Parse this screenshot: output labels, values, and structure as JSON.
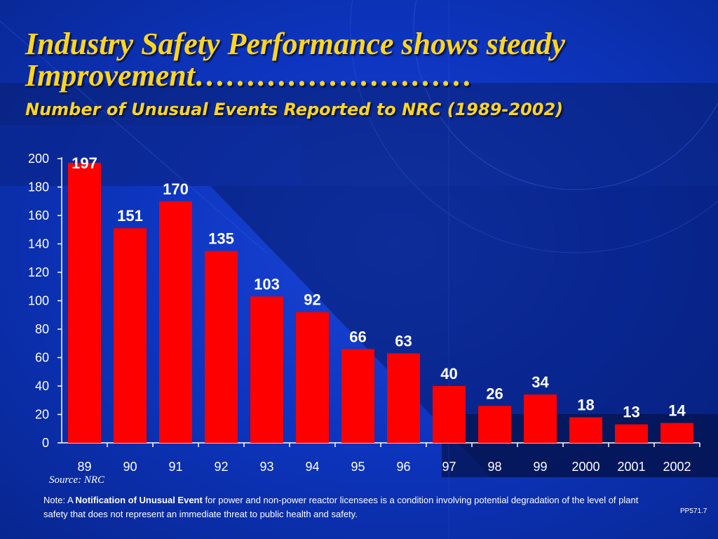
{
  "slide": {
    "title_line1": "Industry Safety Performance shows steady",
    "title_line2": "Improvement………………………",
    "subtitle": "Number of Unusual Events Reported to NRC (1989-2002)",
    "source": "Source: NRC",
    "note_prefix": "Note: A ",
    "note_bold": "Notification of Unusual Event",
    "note_rest": " for power and non-power reactor licensees is a condition involving potential degradation of the level of plant safety that does not represent an immediate threat to public health and safety.",
    "code": "PP571.7"
  },
  "colors": {
    "bar": "#ff0000",
    "title": "#ffd51f",
    "background": "#0d35c0",
    "text": "#ffffff"
  },
  "chart_data": {
    "type": "bar",
    "title": "Number of Unusual Events Reported to NRC (1989-2002)",
    "xlabel": "",
    "ylabel": "",
    "categories": [
      "89",
      "90",
      "91",
      "92",
      "93",
      "94",
      "95",
      "96",
      "97",
      "98",
      "99",
      "2000",
      "2001",
      "2002"
    ],
    "values": [
      197,
      151,
      170,
      135,
      103,
      92,
      66,
      63,
      40,
      26,
      34,
      18,
      13,
      14
    ],
    "ylim": [
      0,
      200
    ],
    "yticks": [
      0,
      20,
      40,
      60,
      80,
      100,
      120,
      140,
      160,
      180,
      200
    ],
    "data_labels": true,
    "grid": false,
    "legend": "none"
  }
}
